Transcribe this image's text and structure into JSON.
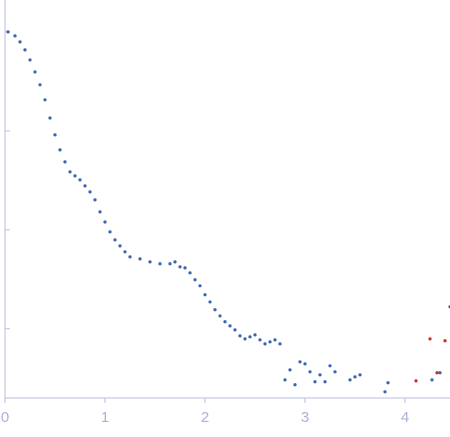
{
  "chart_data": {
    "type": "scatter",
    "log_y": true,
    "xlim": [
      0,
      4.45
    ],
    "xticks": [
      0,
      1,
      2,
      3,
      4
    ],
    "ylim": [
      0.0002,
      2.1
    ],
    "yticks": [
      1,
      0.1,
      0.01,
      0.001
    ],
    "series": [
      {
        "color": "#3a63b0",
        "x": [
          0.03,
          0.1,
          0.15,
          0.2,
          0.25,
          0.3,
          0.35,
          0.4,
          0.45,
          0.5,
          0.55,
          0.6,
          0.65,
          0.7,
          0.75,
          0.8,
          0.85,
          0.9,
          0.95,
          1.0,
          1.05,
          1.1,
          1.15,
          1.2,
          1.25,
          1.35,
          1.45,
          1.55,
          1.65,
          1.7,
          1.75,
          1.8,
          1.85,
          1.9,
          1.95,
          2.0,
          2.05,
          2.1,
          2.15,
          2.2,
          2.25,
          2.3,
          2.35,
          2.4,
          2.45,
          2.5,
          2.55,
          2.6,
          2.65,
          2.7,
          2.75,
          2.8,
          2.85,
          2.9,
          2.95,
          3.0,
          3.05,
          3.1,
          3.15,
          3.2,
          3.25,
          3.3,
          3.45,
          3.5,
          3.55,
          3.8,
          3.83,
          4.27,
          4.35,
          4.45
        ],
        "values": [
          1.0,
          0.911,
          0.793,
          0.658,
          0.521,
          0.394,
          0.292,
          0.206,
          0.135,
          0.0912,
          0.0643,
          0.0486,
          0.0385,
          0.0351,
          0.032,
          0.0278,
          0.0242,
          0.0201,
          0.0152,
          0.012,
          0.00955,
          0.00793,
          0.00689,
          0.006,
          0.00533,
          0.00509,
          0.00475,
          0.00454,
          0.00454,
          0.00475,
          0.00423,
          0.00413,
          0.00368,
          0.00313,
          0.00272,
          0.00221,
          0.00187,
          0.00156,
          0.00135,
          0.00118,
          0.00107,
          0.000977,
          0.000849,
          0.000792,
          0.00083,
          0.000869,
          0.000774,
          0.000705,
          0.000739,
          0.000774,
          0.000705,
          0.000305,
          0.000385,
          0.000272,
          0.000464,
          0.000443,
          0.000368,
          0.000292,
          0.000343,
          0.000292,
          0.000423,
          0.000368,
          0.000305,
          0.000327,
          0.000343,
          0.000231,
          0.000285,
          0.000305,
          0.00036,
          0.00167
        ]
      },
      {
        "color": "#d42a1e",
        "x": [
          4.11,
          4.25,
          4.32,
          4.4
        ],
        "values": [
          0.000298,
          0.000792,
          0.00036,
          0.000757
        ]
      }
    ]
  }
}
